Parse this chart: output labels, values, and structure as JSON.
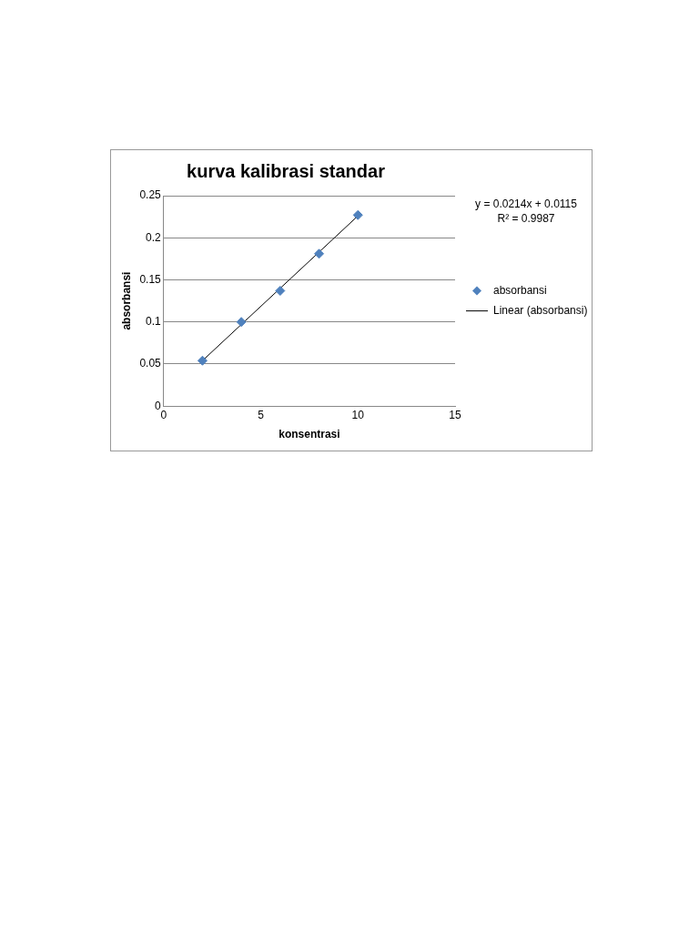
{
  "chart_data": {
    "type": "scatter",
    "title": "kurva kalibrasi standar",
    "xlabel": "konsentrasi",
    "ylabel": "absorbansi",
    "xlim": [
      0,
      15
    ],
    "xticks": [
      0,
      5,
      10,
      15
    ],
    "ylim": [
      0,
      0.25
    ],
    "yticks": [
      0,
      0.05,
      0.1,
      0.15,
      0.2,
      0.25
    ],
    "grid": "y",
    "legend": "right",
    "marker": "diamond",
    "series": [
      {
        "name": "absorbansi",
        "color": "#4f81bd",
        "x": [
          2,
          4,
          6,
          8,
          10
        ],
        "values": [
          0.054,
          0.1,
          0.137,
          0.181,
          0.227
        ]
      },
      {
        "name": "Linear (absorbansi)",
        "type": "line",
        "color": "#000000",
        "line_style": "solid",
        "marker": "none",
        "x": [
          2,
          10
        ],
        "values": [
          0.054,
          0.226
        ]
      }
    ],
    "annotations": [
      "y = 0.0214x + 0.0115",
      "R² = 0.9987"
    ]
  }
}
